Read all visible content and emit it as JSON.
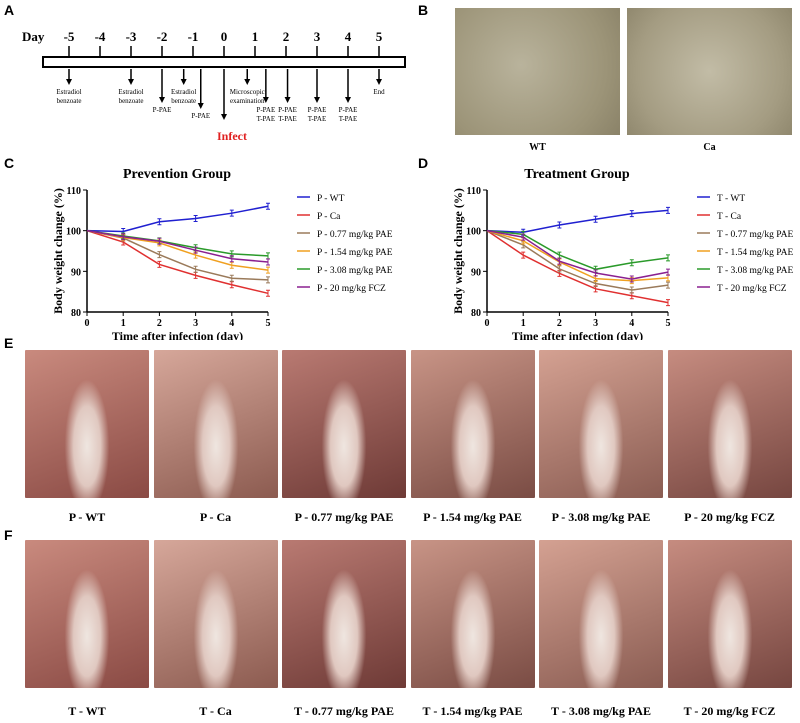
{
  "panels": {
    "A": "A",
    "B": "B",
    "C": "C",
    "D": "D",
    "E": "E",
    "F": "F"
  },
  "timeline": {
    "day_label": "Day",
    "days": [
      "-5",
      "-4",
      "-3",
      "-2",
      "-1",
      "0",
      "1",
      "2",
      "3",
      "4",
      "5"
    ],
    "events": [
      {
        "day": -5,
        "lines": [
          "Estradiol",
          "benzoate"
        ]
      },
      {
        "day": -3,
        "lines": [
          "Estradiol",
          "benzoate"
        ]
      },
      {
        "day": -2,
        "lines": [
          "P-PAE"
        ]
      },
      {
        "day": -1.3,
        "lines": [
          "Estradiol",
          "benzoate"
        ]
      },
      {
        "day": -0.75,
        "lines": [
          "P-PAE"
        ]
      },
      {
        "day": 0.75,
        "lines": [
          "Microscopic",
          "examination"
        ]
      },
      {
        "day": 1.35,
        "lines": [
          "P-PAE",
          "T-PAE"
        ]
      },
      {
        "day": 2.05,
        "lines": [
          "P-PAE",
          "T-PAE"
        ]
      },
      {
        "day": 3.0,
        "lines": [
          "P-PAE",
          "T-PAE"
        ]
      },
      {
        "day": 4.0,
        "lines": [
          "P-PAE",
          "T-PAE"
        ]
      },
      {
        "day": 5.0,
        "lines": [
          "End"
        ]
      }
    ],
    "infect_label": "Infect",
    "infect_color": "#e02020"
  },
  "micrographs": {
    "labels": [
      "WT",
      "Ca"
    ]
  },
  "chart_data": [
    {
      "type": "line",
      "title": "Prevention Group",
      "xlabel": "Time after infection (day)",
      "ylabel": "Body weight change (%)",
      "x": [
        0,
        1,
        2,
        3,
        4,
        5
      ],
      "xlim": [
        0,
        5
      ],
      "ylim": [
        80,
        110
      ],
      "yticks": [
        80,
        90,
        100,
        110
      ],
      "legend": "right",
      "series": [
        {
          "name": "P - WT",
          "color": "#2020d0",
          "values": [
            100,
            99.8,
            102.2,
            103,
            104.3,
            106
          ]
        },
        {
          "name": "P - Ca",
          "color": "#e03030",
          "values": [
            100,
            97.2,
            91.7,
            89,
            86.7,
            84.6
          ]
        },
        {
          "name": "P - 0.77 mg/kg PAE",
          "color": "#9a7a5a",
          "values": [
            100,
            98.2,
            94.1,
            90.5,
            88.3,
            87.9
          ]
        },
        {
          "name": "P - 1.54 mg/kg PAE",
          "color": "#f0a020",
          "values": [
            100,
            98.3,
            97,
            94,
            91.5,
            90.3
          ]
        },
        {
          "name": "P - 3.08 mg/kg PAE",
          "color": "#2a9a2a",
          "values": [
            100,
            98.7,
            97.5,
            95.8,
            94.3,
            93.8
          ]
        },
        {
          "name": "P - 20 mg/kg FCZ",
          "color": "#8a2090",
          "values": [
            100,
            98.5,
            97.4,
            95.2,
            93.1,
            92.3
          ]
        }
      ]
    },
    {
      "type": "line",
      "title": "Treatment Group",
      "xlabel": "Time after infection (day)",
      "ylabel": "Body weight change (%)",
      "x": [
        0,
        1,
        2,
        3,
        4,
        5
      ],
      "xlim": [
        0,
        5
      ],
      "ylim": [
        80,
        110
      ],
      "yticks": [
        80,
        90,
        100,
        110
      ],
      "legend": "right",
      "series": [
        {
          "name": "T - WT",
          "color": "#2020d0",
          "values": [
            100,
            99.6,
            101.4,
            102.8,
            104.2,
            105
          ]
        },
        {
          "name": "T - Ca",
          "color": "#e03030",
          "values": [
            100,
            94,
            89.5,
            85.7,
            84,
            82.3
          ]
        },
        {
          "name": "T - 0.77 mg/kg PAE",
          "color": "#9a7a5a",
          "values": [
            100,
            96.5,
            90.6,
            87,
            85.4,
            86.6
          ]
        },
        {
          "name": "T - 1.54 mg/kg PAE",
          "color": "#f0a020",
          "values": [
            100,
            97.5,
            92.3,
            88.2,
            87.7,
            88.4
          ]
        },
        {
          "name": "T - 3.08 mg/kg PAE",
          "color": "#2a9a2a",
          "values": [
            100,
            99.1,
            94,
            90.5,
            92.1,
            93.3
          ]
        },
        {
          "name": "T - 20 mg/kg FCZ",
          "color": "#8a2090",
          "values": [
            100,
            98.4,
            92.5,
            89.6,
            88.1,
            89.8
          ]
        }
      ]
    }
  ],
  "photos_E": [
    "P - WT",
    "P - Ca",
    "P - 0.77 mg/kg PAE",
    "P - 1.54 mg/kg PAE",
    "P - 3.08 mg/kg PAE",
    "P - 20 mg/kg FCZ"
  ],
  "photos_F": [
    "T - WT",
    "T - Ca",
    "T - 0.77 mg/kg PAE",
    "T - 1.54 mg/kg PAE",
    "T - 3.08 mg/kg PAE",
    "T - 20 mg/kg FCZ"
  ]
}
